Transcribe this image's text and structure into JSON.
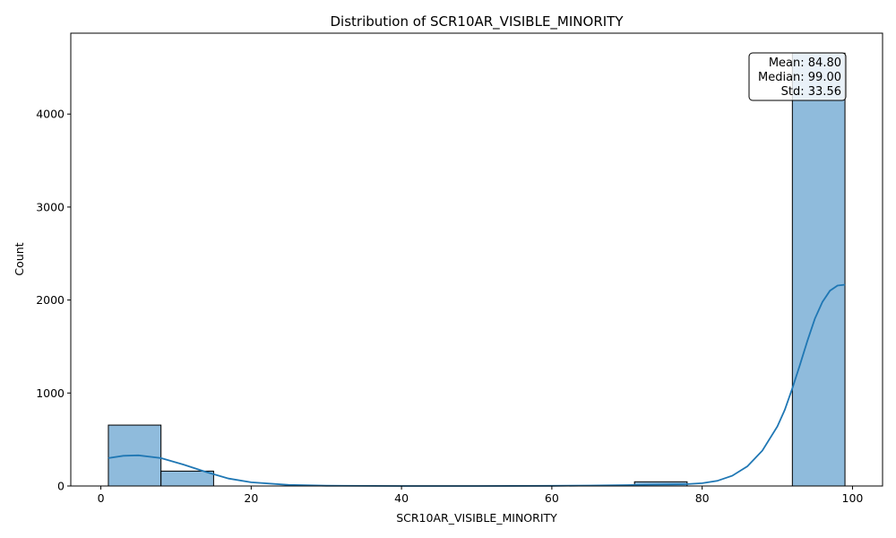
{
  "chart_data": {
    "type": "bar",
    "title": "Distribution of SCR10AR_VISIBLE_MINORITY",
    "xlabel": "SCR10AR_VISIBLE_MINORITY",
    "ylabel": "Count",
    "xlim": [
      -4,
      104
    ],
    "ylim": [
      0,
      4870
    ],
    "xticks": [
      0,
      20,
      40,
      60,
      80,
      100
    ],
    "yticks": [
      0,
      1000,
      2000,
      3000,
      4000
    ],
    "bins": [
      {
        "start": 1,
        "end": 8,
        "count": 655
      },
      {
        "start": 8,
        "end": 15,
        "count": 160
      },
      {
        "start": 71,
        "end": 78,
        "count": 45
      },
      {
        "start": 92,
        "end": 99,
        "count": 4655
      }
    ],
    "kde": {
      "x": [
        1,
        3,
        5,
        8,
        11,
        14,
        17,
        20,
        25,
        30,
        40,
        50,
        60,
        65,
        70,
        73,
        76,
        78,
        80,
        82,
        84,
        86,
        88,
        90,
        91,
        92,
        93,
        94,
        95,
        96,
        97,
        98,
        99
      ],
      "y": [
        300,
        325,
        330,
        300,
        230,
        150,
        80,
        40,
        12,
        3,
        0,
        0,
        2,
        5,
        10,
        14,
        17,
        20,
        30,
        55,
        110,
        210,
        380,
        640,
        820,
        1050,
        1300,
        1560,
        1800,
        1980,
        2100,
        2155,
        2165
      ]
    },
    "bar_color": "#8fbbdc",
    "edge_color": "#000000",
    "line_color": "#1f77b4",
    "grid": false,
    "stats_box": {
      "lines": [
        "Mean: 84.80",
        "Median: 99.00",
        "Std: 33.56"
      ],
      "placement": "top-right"
    }
  }
}
